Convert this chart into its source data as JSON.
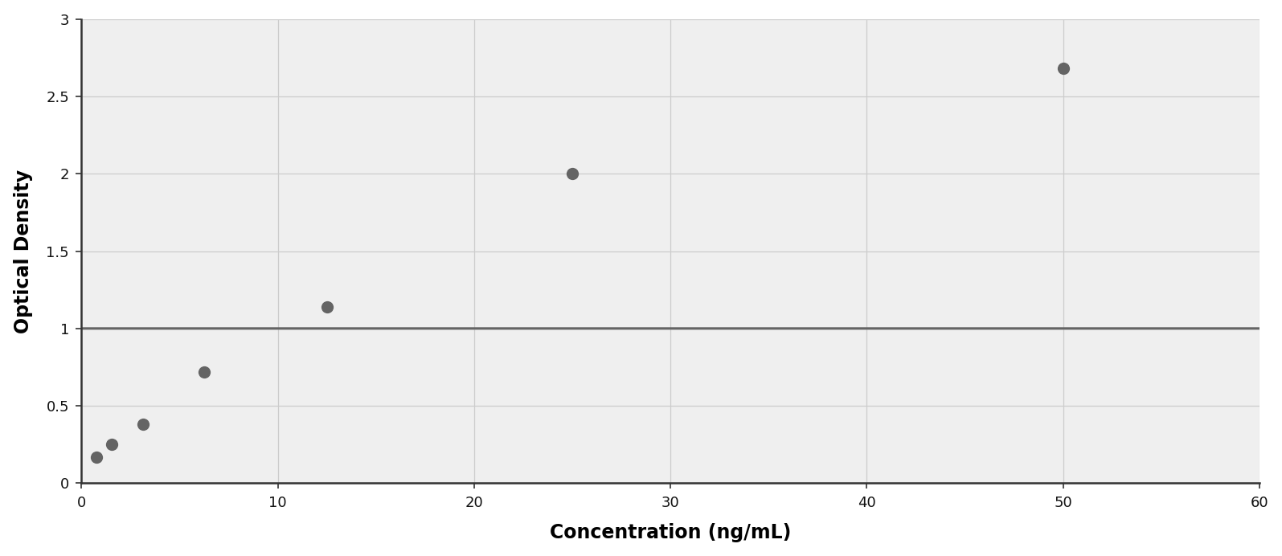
{
  "x_data": [
    0.78,
    1.56,
    3.13,
    6.25,
    12.5,
    25.0,
    50.0
  ],
  "y_data": [
    0.17,
    0.25,
    0.38,
    0.72,
    1.14,
    2.0,
    2.68
  ],
  "xlabel": "Concentration (ng/mL)",
  "ylabel": "Optical Density",
  "xlim": [
    0,
    60
  ],
  "ylim": [
    0,
    3
  ],
  "xticks": [
    0,
    10,
    20,
    30,
    40,
    50,
    60
  ],
  "yticks": [
    0,
    0.5,
    1.0,
    1.5,
    2.0,
    2.5,
    3.0
  ],
  "data_color": "#646464",
  "line_color": "#646464",
  "plot_bg_color": "#efefef",
  "outer_bg_color": "#ffffff",
  "marker_size": 11,
  "line_width": 2.2,
  "xlabel_fontsize": 17,
  "ylabel_fontsize": 17,
  "tick_fontsize": 13,
  "grid_color": "#cccccc",
  "grid_linewidth": 0.9,
  "border_color": "#333333",
  "border_linewidth": 1.8
}
